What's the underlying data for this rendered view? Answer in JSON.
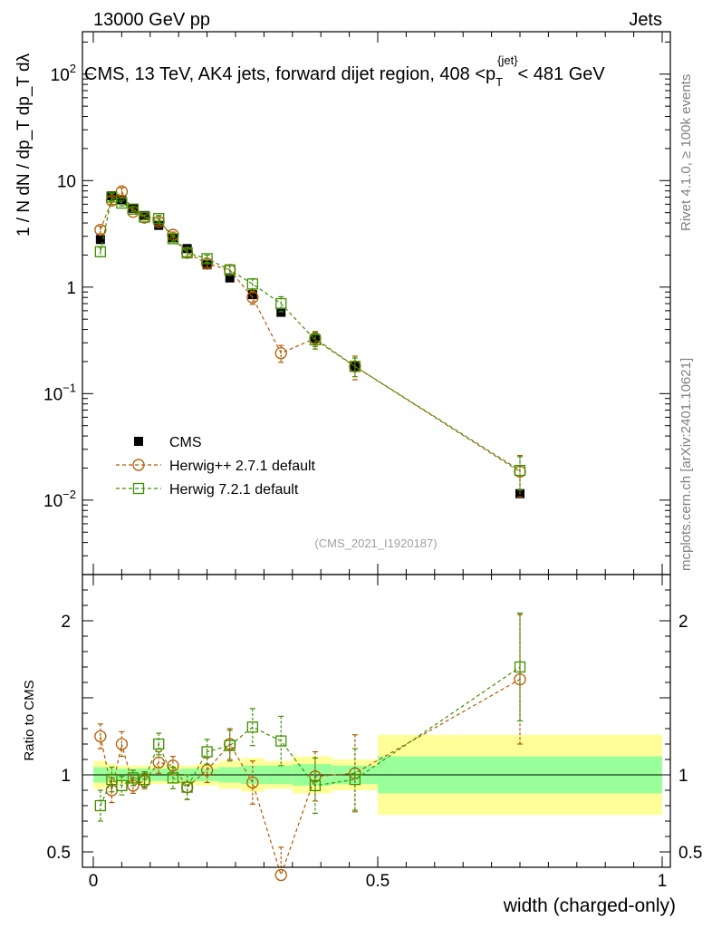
{
  "header": {
    "left": "13000 GeV pp",
    "right": "Jets"
  },
  "side_labels": {
    "rivet": "Rivet 4.1.0, ≥ 100k events",
    "mcplots": "mcplots.cern.ch [arXiv:2401.10621]"
  },
  "watermark": "(CMS_2021_I1920187)",
  "chart_data": {
    "type": "scatter",
    "title_parts": [
      "CMS, 13 TeV, AK4 jets, forward dijet region, 408 <p",
      "T",
      "{jet}",
      "< 481 GeV"
    ],
    "ylabel_main": "1 / N dN / dp_T dp_T dλ",
    "ylabel_ratio": "Ratio to CMS",
    "xlabel": "width (charged-only)",
    "xlim": [
      0,
      1
    ],
    "ylim_main": [
      0.002,
      250
    ],
    "ylim_ratio": [
      0.4,
      2.3
    ],
    "x_ticks": [
      {
        "value": 0,
        "label": "0"
      },
      {
        "value": 0.5,
        "label": "0.5"
      },
      {
        "value": 1,
        "label": "1"
      }
    ],
    "y_ticks_main": [
      {
        "value": 0.01,
        "base": "10",
        "exp": "−2"
      },
      {
        "value": 0.1,
        "base": "10",
        "exp": "−1"
      },
      {
        "value": 1,
        "base": "1",
        "exp": ""
      },
      {
        "value": 10,
        "base": "10",
        "exp": ""
      },
      {
        "value": 100,
        "base": "10",
        "exp": "2"
      }
    ],
    "y_ticks_ratio": [
      {
        "value": 0.5,
        "label": "0.5"
      },
      {
        "value": 1,
        "label": "1"
      },
      {
        "value": 2,
        "label": "2"
      }
    ],
    "legend": {
      "placement": "lower-left",
      "entries": [
        {
          "name": "CMS",
          "color": "#000000",
          "marker": "filled-square"
        },
        {
          "name": "Herwig++ 2.7.1 default",
          "color": "#b25b00",
          "marker": "open-circle"
        },
        {
          "name": "Herwig 7.2.1 default",
          "color": "#3f8f00",
          "marker": "open-square"
        }
      ]
    },
    "bins": [
      {
        "lo": 0.0,
        "hi": 0.025
      },
      {
        "lo": 0.025,
        "hi": 0.04
      },
      {
        "lo": 0.04,
        "hi": 0.06
      },
      {
        "lo": 0.06,
        "hi": 0.08
      },
      {
        "lo": 0.08,
        "hi": 0.1
      },
      {
        "lo": 0.1,
        "hi": 0.13
      },
      {
        "lo": 0.13,
        "hi": 0.15
      },
      {
        "lo": 0.15,
        "hi": 0.18
      },
      {
        "lo": 0.18,
        "hi": 0.22
      },
      {
        "lo": 0.22,
        "hi": 0.26
      },
      {
        "lo": 0.26,
        "hi": 0.3
      },
      {
        "lo": 0.3,
        "hi": 0.35
      },
      {
        "lo": 0.35,
        "hi": 0.42
      },
      {
        "lo": 0.42,
        "hi": 0.5
      },
      {
        "lo": 0.5,
        "hi": 1.0
      }
    ],
    "x": [
      0.0125,
      0.0325,
      0.05,
      0.07,
      0.09,
      0.115,
      0.14,
      0.165,
      0.2,
      0.24,
      0.28,
      0.33,
      0.39,
      0.46,
      0.75
    ],
    "series": [
      {
        "name": "CMS",
        "color": "#000000",
        "values": [
          2.8,
          7.2,
          6.6,
          5.5,
          4.7,
          3.8,
          2.9,
          2.3,
          1.62,
          1.22,
          0.85,
          0.58,
          0.33,
          0.18,
          0.0115
        ],
        "band_stat": [
          0.05,
          0.04,
          0.04,
          0.04,
          0.04,
          0.04,
          0.04,
          0.04,
          0.04,
          0.05,
          0.06,
          0.06,
          0.07,
          0.06,
          0.12
        ],
        "band_total": [
          0.09,
          0.07,
          0.06,
          0.06,
          0.06,
          0.06,
          0.06,
          0.06,
          0.07,
          0.09,
          0.11,
          0.09,
          0.12,
          0.1,
          0.26
        ]
      },
      {
        "name": "Herwig++ 2.7.1 default",
        "color": "#b25b00",
        "values": [
          3.45,
          6.5,
          7.9,
          5.1,
          4.5,
          4.1,
          3.1,
          2.1,
          1.66,
          1.45,
          0.8,
          0.24,
          0.33,
          0.18,
          0.0185
        ],
        "ratio": [
          1.25,
          0.9,
          1.2,
          0.93,
          0.96,
          1.08,
          1.06,
          0.92,
          1.03,
          1.2,
          0.95,
          0.35,
          0.99,
          1.01,
          1.62
        ],
        "ratio_err": [
          0.08,
          0.08,
          0.08,
          0.05,
          0.05,
          0.07,
          0.06,
          0.08,
          0.08,
          0.1,
          0.14,
          0.18,
          0.16,
          0.25,
          0.42
        ]
      },
      {
        "name": "Herwig 7.2.1 default",
        "color": "#3f8f00",
        "values": [
          2.15,
          7.0,
          6.15,
          5.4,
          4.55,
          4.4,
          2.85,
          2.1,
          1.85,
          1.45,
          1.07,
          0.7,
          0.32,
          0.18,
          0.019
        ],
        "ratio": [
          0.8,
          0.97,
          0.93,
          0.98,
          0.97,
          1.2,
          0.98,
          0.92,
          1.15,
          1.19,
          1.31,
          1.22,
          0.93,
          0.97,
          1.7
        ],
        "ratio_err": [
          0.1,
          0.08,
          0.06,
          0.05,
          0.05,
          0.07,
          0.07,
          0.08,
          0.08,
          0.1,
          0.12,
          0.16,
          0.18,
          0.2,
          0.35
        ]
      }
    ]
  }
}
